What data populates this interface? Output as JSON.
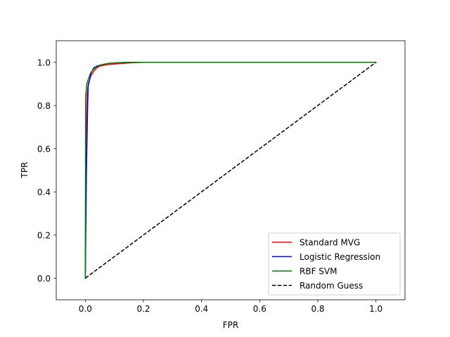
{
  "chart_data": {
    "type": "line",
    "title": "",
    "xlabel": "FPR",
    "ylabel": "TPR",
    "xlim": [
      -0.1,
      1.1
    ],
    "ylim": [
      -0.1,
      1.1
    ],
    "xticks": [
      0.0,
      0.2,
      0.4,
      0.6,
      0.8,
      1.0
    ],
    "yticks": [
      0.0,
      0.2,
      0.4,
      0.6,
      0.8,
      1.0
    ],
    "xtick_labels": [
      "0.0",
      "0.2",
      "0.4",
      "0.6",
      "0.8",
      "1.0"
    ],
    "ytick_labels": [
      "0.0",
      "0.2",
      "0.4",
      "0.6",
      "0.8",
      "1.0"
    ],
    "grid": false,
    "legend_position": "lower-right",
    "series": [
      {
        "name": "Standard MVG",
        "color": "#ff0000",
        "dash": "solid",
        "x": [
          0.0,
          0.003,
          0.006,
          0.01,
          0.015,
          0.02,
          0.03,
          0.04,
          0.05,
          0.07,
          0.1,
          0.13,
          0.16,
          0.2,
          0.4,
          1.0
        ],
        "y": [
          0.0,
          0.6,
          0.85,
          0.9,
          0.92,
          0.94,
          0.96,
          0.975,
          0.982,
          0.988,
          0.992,
          0.995,
          0.998,
          1.0,
          1.0,
          1.0
        ]
      },
      {
        "name": "Logistic Regression",
        "color": "#0000ff",
        "dash": "solid",
        "x": [
          0.0,
          0.004,
          0.008,
          0.01,
          0.015,
          0.02,
          0.025,
          0.03,
          0.04,
          0.06,
          0.08,
          0.1,
          0.13,
          0.2,
          0.4,
          1.0
        ],
        "y": [
          0.0,
          0.5,
          0.8,
          0.89,
          0.92,
          0.95,
          0.965,
          0.975,
          0.983,
          0.99,
          0.995,
          0.997,
          0.999,
          1.0,
          1.0,
          1.0
        ]
      },
      {
        "name": "RBF SVM",
        "color": "#008000",
        "dash": "solid",
        "x": [
          0.0,
          0.001,
          0.003,
          0.005,
          0.01,
          0.015,
          0.02,
          0.03,
          0.04,
          0.06,
          0.08,
          0.1,
          0.12,
          0.15,
          0.2,
          0.4,
          1.0
        ],
        "y": [
          0.0,
          0.84,
          0.87,
          0.9,
          0.92,
          0.94,
          0.955,
          0.97,
          0.98,
          0.99,
          0.995,
          0.997,
          0.998,
          1.0,
          1.0,
          1.0,
          1.0
        ]
      },
      {
        "name": "Random Guess",
        "color": "#000000",
        "dash": "dashed",
        "x": [
          0.0,
          1.0
        ],
        "y": [
          0.0,
          1.0
        ]
      }
    ]
  }
}
